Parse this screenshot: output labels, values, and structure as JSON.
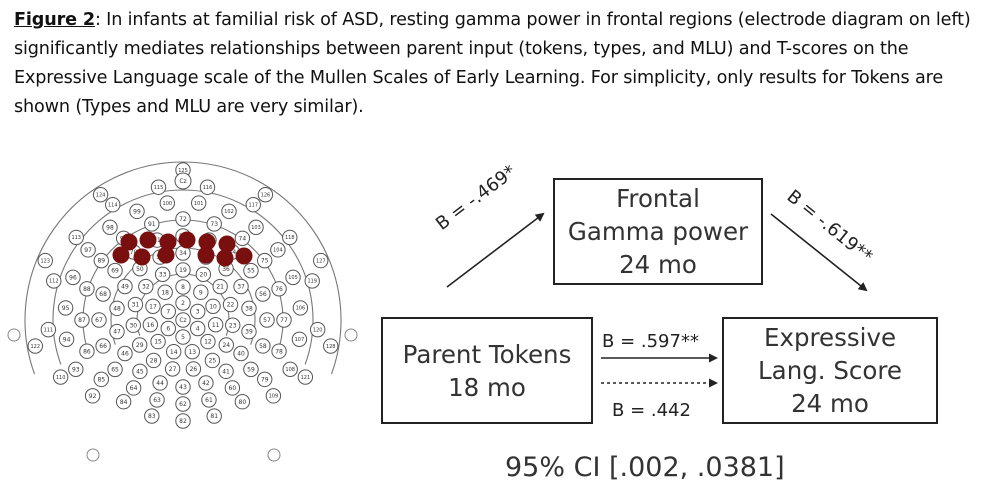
{
  "caption": {
    "label": "Figure 2",
    "text": ": In infants at familial risk of ASD, resting gamma power in frontal regions (electrode diagram on left) significantly mediates relationships between parent input (tokens, types, and MLU) and T-scores on the Expressive Language scale of the Mullen Scales of Early Learning. For simplicity, only results for Tokens are shown (Types and MLU are very similar)."
  },
  "electrode_labels": [
    "Cz",
    "2",
    "3",
    "4",
    "5",
    "6",
    "7",
    "8",
    "9",
    "10",
    "11",
    "12",
    "13",
    "14",
    "15",
    "16",
    "17",
    "18",
    "19",
    "20",
    "21",
    "22",
    "23",
    "24",
    "25",
    "26",
    "27",
    "28",
    "29",
    "30",
    "31",
    "32",
    "33",
    "34",
    "35",
    "36",
    "37",
    "38",
    "39",
    "40",
    "41",
    "42",
    "43",
    "44",
    "45",
    "46",
    "47",
    "48",
    "49",
    "50",
    "51",
    "52",
    "53",
    "54",
    "55",
    "56",
    "57",
    "58",
    "59",
    "60",
    "61",
    "62",
    "63",
    "64",
    "65",
    "66",
    "67",
    "68",
    "69",
    "70",
    "71",
    "72",
    "73",
    "74",
    "75",
    "76",
    "77",
    "78",
    "79",
    "80",
    "81",
    "82",
    "83",
    "84",
    "85",
    "86",
    "87",
    "88",
    "89",
    "90",
    "91",
    "92",
    "93",
    "94",
    "95",
    "96",
    "97",
    "98",
    "99",
    "100",
    "101",
    "102",
    "103",
    "104",
    "105",
    "106",
    "107",
    "108",
    "109",
    "110",
    "111",
    "112",
    "113",
    "114",
    "115",
    "116",
    "117",
    "118",
    "119",
    "120",
    "121",
    "122",
    "123",
    "124",
    "125",
    "126",
    "127",
    "128"
  ],
  "frontal_electrodes_highlighted": 12,
  "mediator": {
    "line1": "Frontal",
    "line2": "Gamma power",
    "line3": "24 mo"
  },
  "predictor": {
    "line1": "Parent Tokens",
    "line2": "18 mo"
  },
  "outcome": {
    "line1": "Expressive",
    "line2": "Lang. Score",
    "line3": "24 mo"
  },
  "path_a": "B = -.469*",
  "path_b": "B = -.619**",
  "path_c": "B = .597**",
  "path_c_prime": "B = .442",
  "ci": "95% CI [.002, .0381]",
  "colors": {
    "highlight": "#7a0f10",
    "line": "#222222"
  }
}
